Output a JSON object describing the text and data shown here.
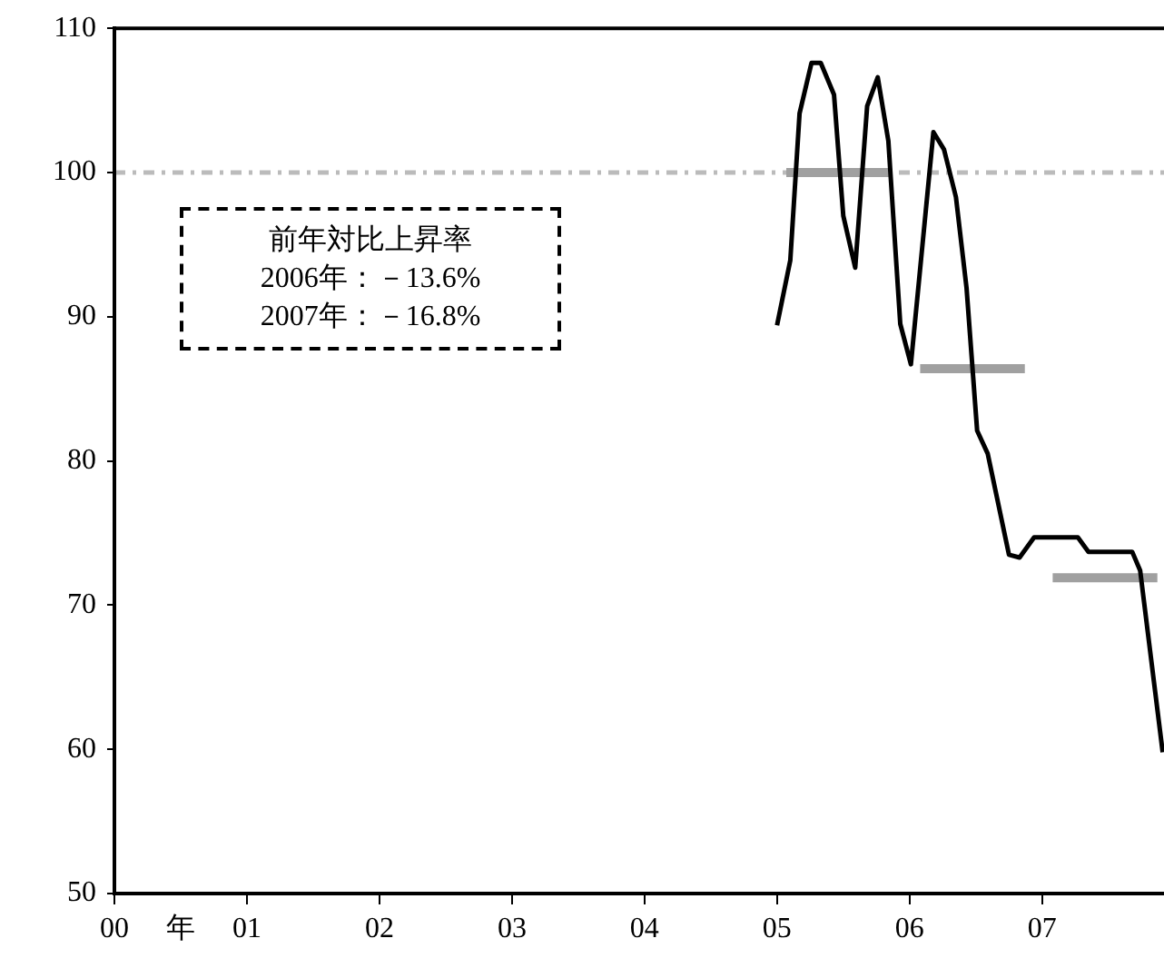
{
  "chart_data": {
    "type": "line",
    "xlabel": "年",
    "xlim": [
      0,
      7.92
    ],
    "ylim": [
      50,
      110
    ],
    "xticks": [
      {
        "value": 0,
        "label": "00"
      },
      {
        "value": 1,
        "label": "01"
      },
      {
        "value": 2,
        "label": "02"
      },
      {
        "value": 3,
        "label": "03"
      },
      {
        "value": 4,
        "label": "04"
      },
      {
        "value": 5,
        "label": "05"
      },
      {
        "value": 6,
        "label": "06"
      },
      {
        "value": 7,
        "label": "07"
      }
    ],
    "yticks": [
      50,
      60,
      70,
      80,
      90,
      100,
      110
    ],
    "grid": false,
    "legend": false,
    "marker": "none",
    "line_style": "solid",
    "series": [
      {
        "color": "#000000",
        "x": [
          5.0,
          5.1,
          5.17,
          5.26,
          5.33,
          5.43,
          5.5,
          5.59,
          5.68,
          5.76,
          5.84,
          5.93,
          6.01,
          6.18,
          6.26,
          6.35,
          6.43,
          6.51,
          6.59,
          6.75,
          6.83,
          6.94,
          7.27,
          7.35,
          7.68,
          7.74,
          7.91
        ],
        "values": [
          89.4,
          93.9,
          104.1,
          107.6,
          107.6,
          105.4,
          97.0,
          93.4,
          104.6,
          106.6,
          102.2,
          89.5,
          86.7,
          102.8,
          101.6,
          98.3,
          92.0,
          82.1,
          80.5,
          73.5,
          73.3,
          74.7,
          74.7,
          73.7,
          73.7,
          72.4,
          59.8
        ]
      },
      {
        "color": "#a0a0a0",
        "x": [
          5.07,
          5.85
        ],
        "values": [
          100,
          100
        ]
      },
      {
        "color": "#a0a0a0",
        "x": [
          6.08,
          6.87
        ],
        "values": [
          86.4,
          86.4
        ]
      },
      {
        "color": "#a0a0a0",
        "x": [
          7.08,
          7.87
        ],
        "values": [
          71.9,
          71.9
        ]
      }
    ],
    "ref_lines": [
      {
        "axis": "y",
        "value": 100,
        "color": "#bbbbbb",
        "line_style": "dashdot"
      }
    ],
    "annotations": [
      "前年対比上昇率",
      "2006年：－13.6%",
      "2007年：－16.8%"
    ]
  }
}
